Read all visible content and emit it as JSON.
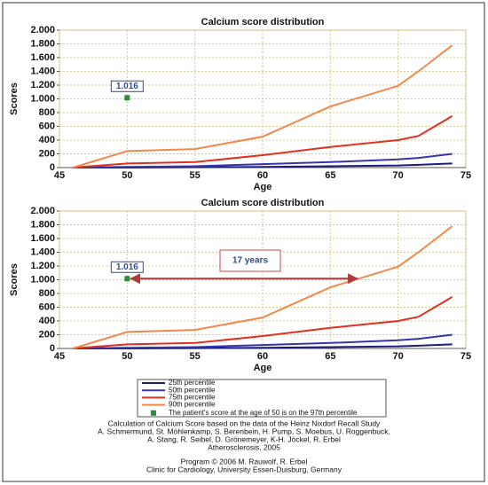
{
  "chart_data": [
    {
      "type": "line",
      "title": "Calcium score distribution",
      "xlabel": "Age",
      "ylabel": "Scores",
      "x": [
        46,
        50,
        55,
        60,
        65,
        70,
        71.5,
        74
      ],
      "series": [
        {
          "name": "25th percentile",
          "color": "#1c1c7a",
          "values": [
            0,
            0,
            5,
            10,
            20,
            30,
            40,
            60
          ]
        },
        {
          "name": "50th percentile",
          "color": "#3535b0",
          "values": [
            0,
            10,
            20,
            50,
            80,
            120,
            140,
            200
          ]
        },
        {
          "name": "75th percentile",
          "color": "#e2301f",
          "values": [
            0,
            60,
            80,
            180,
            300,
            400,
            460,
            750
          ]
        },
        {
          "name": "90th percentile",
          "color": "#f2874a",
          "values": [
            0,
            240,
            270,
            450,
            890,
            1190,
            1400,
            1780
          ]
        },
        {
          "name": "The patient's score at the age of 50 is on the 97th percentile",
          "type": "scatter",
          "color": "#2e8b3a",
          "x": [
            50
          ],
          "values": [
            1016
          ],
          "value_labels": [
            "1.016"
          ]
        }
      ],
      "xlim": [
        45,
        75
      ],
      "xticks": [
        45,
        50,
        55,
        60,
        65,
        70,
        75
      ],
      "ylim": [
        0,
        2000
      ],
      "yticks": [
        0,
        200,
        400,
        600,
        800,
        {
          "value": 1000,
          "label": "1.000"
        },
        {
          "value": 1200,
          "label": "1.200"
        },
        {
          "value": 1400,
          "label": "1.400"
        },
        {
          "value": 1600,
          "label": "1.600"
        },
        {
          "value": 1800,
          "label": "1.800"
        },
        {
          "value": 2000,
          "label": "2.000"
        }
      ],
      "grid": true
    },
    {
      "type": "line",
      "title": "Calcium score distribution",
      "xlabel": "Age",
      "ylabel": "Scores",
      "x": [
        46,
        50,
        55,
        60,
        65,
        70,
        71.5,
        74
      ],
      "series": [
        {
          "color": "#1c1c7a",
          "values": [
            0,
            0,
            5,
            10,
            20,
            30,
            40,
            60
          ]
        },
        {
          "color": "#3535b0",
          "values": [
            0,
            10,
            20,
            50,
            80,
            120,
            140,
            200
          ]
        },
        {
          "color": "#e2301f",
          "values": [
            0,
            60,
            80,
            180,
            300,
            400,
            460,
            750
          ]
        },
        {
          "color": "#f2874a",
          "values": [
            0,
            240,
            270,
            450,
            890,
            1190,
            1400,
            1780
          ]
        },
        {
          "type": "scatter",
          "color": "#2e8b3a",
          "x": [
            50
          ],
          "values": [
            1016
          ],
          "value_labels": [
            "1.016"
          ]
        }
      ],
      "xlim": [
        45,
        75
      ],
      "xticks": [
        45,
        50,
        55,
        60,
        65,
        70,
        75
      ],
      "ylim": [
        0,
        2000
      ],
      "yticks": [
        0,
        200,
        400,
        600,
        800,
        {
          "value": 1000,
          "label": "1.000"
        },
        {
          "value": 1200,
          "label": "1.200"
        },
        {
          "value": 1400,
          "label": "1.400"
        },
        {
          "value": 1600,
          "label": "1.600"
        },
        {
          "value": 1800,
          "label": "1.800"
        },
        {
          "value": 2000,
          "label": "2.000"
        }
      ],
      "grid": true,
      "annotation": "17 years",
      "arrow": {
        "x": [
          50,
          67
        ],
        "y": 1016
      }
    }
  ],
  "footer": {
    "lines": [
      "Calculation of Calcium Score based on the data of the Heinz Nixdorf Recall Study",
      "A. Schmermund, St. Möhlenkamp, S. Berenbein, H. Pump, S. Moebus, U. Roggenbuck,",
      "A. Stang, R. Seibel, D. Grönemeyer, K-H. Jöckel, R. Erbel",
      "Atherosclerosis, 2005",
      "Program © 2006 M. Rauwolf, R. Erbel",
      "Clinic for Cardiology, University Essen-Duisburg, Germany"
    ]
  }
}
